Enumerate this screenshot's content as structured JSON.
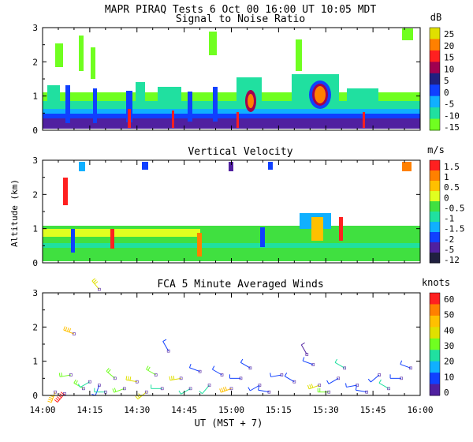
{
  "header": {
    "title": "MAPR PIRAQ Tests  6 Oct 00  16:00 UT  10:05  MDT"
  },
  "xaxis": {
    "label": "UT  (MST + 7)",
    "ticks": [
      "14:00",
      "14:15",
      "14:30",
      "14:45",
      "15:00",
      "15:15",
      "15:30",
      "15:45",
      "16:00"
    ],
    "range_minutes": [
      0,
      120
    ]
  },
  "ylabel_shared": "Altitude (km)",
  "chart_data": [
    {
      "type": "heatmap",
      "title": "Signal to Noise Ratio",
      "unit": "dB",
      "ylim": [
        0,
        3
      ],
      "yticks": [
        "0",
        "1",
        "2",
        "3"
      ],
      "colorbar": {
        "labels": [
          "25",
          "20",
          "15",
          "10",
          "5",
          "0",
          "-5",
          "-10",
          "-15"
        ],
        "colors": [
          "#e0e000",
          "#ff8000",
          "#ff2020",
          "#a00050",
          "#202080",
          "#1040ff",
          "#10b0ff",
          "#20e0a0",
          "#70ff20"
        ]
      },
      "layers": [
        {
          "range": [
            0.0,
            0.35
          ],
          "class": "5-10 dB (purple)"
        },
        {
          "range": [
            0.35,
            0.55
          ],
          "class": "0 dB (blue)"
        },
        {
          "range": [
            0.55,
            0.8
          ],
          "class": "-5 dB (cyan)"
        },
        {
          "range": [
            0.8,
            1.1
          ],
          "class": "-10 to -15 dB (green)"
        }
      ],
      "notable_features": [
        {
          "time_min": 88,
          "alt_km": [
            0.7,
            1.3
          ],
          "peak_db": 20
        },
        {
          "time_min": 67,
          "alt_km": [
            0.8,
            1.2
          ],
          "peak_db": 15
        },
        {
          "time_min": 28,
          "alt_km": [
            0.1,
            0.7
          ],
          "peak_db": 15
        }
      ]
    },
    {
      "type": "heatmap",
      "title": "Vertical Velocity",
      "unit": "m/s",
      "ylim": [
        0,
        3
      ],
      "yticks": [
        "0",
        "1",
        "2",
        "3"
      ],
      "colorbar": {
        "labels": [
          "1.5",
          "1",
          "0.5",
          "0",
          "-0.5",
          "-1",
          "-1.5",
          "-2",
          "-5",
          "-12"
        ],
        "colors": [
          "#ff2020",
          "#ff8000",
          "#ffc000",
          "#e0ff20",
          "#40e040",
          "#20e0a0",
          "#10b0ff",
          "#1040ff",
          "#5020a0",
          "#202040"
        ]
      },
      "dominant_range_ms": [
        -0.5,
        0.5
      ],
      "layer_top_km": 1.0,
      "updraft_feature": {
        "time_min": 88,
        "alt_km": [
          0.8,
          1.4
        ]
      }
    },
    {
      "type": "scatter",
      "title": "FCA 5 Minute Averaged Winds",
      "unit": "knots",
      "ylim": [
        0,
        3
      ],
      "yticks": [
        "0",
        "1",
        "2",
        "3"
      ],
      "colorbar": {
        "labels": [
          "60",
          "50",
          "40",
          "30",
          "20",
          "10",
          "0"
        ],
        "colors": [
          "#ff2020",
          "#ff8000",
          "#ffc000",
          "#e0e000",
          "#70ff20",
          "#20e0a0",
          "#10b0ff",
          "#1040ff",
          "#5020a0"
        ]
      },
      "barbs": [
        {
          "t": 4,
          "z": 0.1,
          "spd": 40,
          "dir": 200
        },
        {
          "t": 7,
          "z": 0.05,
          "spd": 60,
          "dir": 220
        },
        {
          "t": 9,
          "z": 0.6,
          "spd": 20,
          "dir": 260
        },
        {
          "t": 10,
          "z": 1.8,
          "spd": 35,
          "dir": 290
        },
        {
          "t": 18,
          "z": 3.1,
          "spd": 25,
          "dir": 320
        },
        {
          "t": 13,
          "z": 0.2,
          "spd": 15,
          "dir": 300
        },
        {
          "t": 15,
          "z": 0.4,
          "spd": 10,
          "dir": 240
        },
        {
          "t": 18,
          "z": 0.3,
          "spd": 8,
          "dir": 200
        },
        {
          "t": 20,
          "z": 0.1,
          "spd": 12,
          "dir": 270
        },
        {
          "t": 23,
          "z": 0.5,
          "spd": 18,
          "dir": 310
        },
        {
          "t": 26,
          "z": 0.2,
          "spd": 22,
          "dir": 250
        },
        {
          "t": 30,
          "z": 0.4,
          "spd": 30,
          "dir": 280
        },
        {
          "t": 33,
          "z": 0.1,
          "spd": 25,
          "dir": 230
        },
        {
          "t": 36,
          "z": 0.6,
          "spd": 15,
          "dir": 300
        },
        {
          "t": 38,
          "z": 0.2,
          "spd": 10,
          "dir": 270
        },
        {
          "t": 40,
          "z": 1.3,
          "spd": 6,
          "dir": 330
        },
        {
          "t": 44,
          "z": 0.5,
          "spd": 30,
          "dir": 260
        },
        {
          "t": 47,
          "z": 0.2,
          "spd": 12,
          "dir": 240
        },
        {
          "t": 50,
          "z": 0.7,
          "spd": 5,
          "dir": 290
        },
        {
          "t": 53,
          "z": 0.3,
          "spd": 10,
          "dir": 220
        },
        {
          "t": 57,
          "z": 0.6,
          "spd": 8,
          "dir": 300
        },
        {
          "t": 60,
          "z": 0.2,
          "spd": 35,
          "dir": 250
        },
        {
          "t": 63,
          "z": 0.5,
          "spd": 6,
          "dir": 270
        },
        {
          "t": 66,
          "z": 0.8,
          "spd": 9,
          "dir": 300
        },
        {
          "t": 69,
          "z": 0.3,
          "spd": 5,
          "dir": 240
        },
        {
          "t": 72,
          "z": 0.1,
          "spd": 7,
          "dir": 280
        },
        {
          "t": 76,
          "z": 0.6,
          "spd": 5,
          "dir": 260
        },
        {
          "t": 80,
          "z": 0.4,
          "spd": 8,
          "dir": 300
        },
        {
          "t": 84,
          "z": 1.2,
          "spd": 4,
          "dir": 330
        },
        {
          "t": 86,
          "z": 0.9,
          "spd": 6,
          "dir": 290
        },
        {
          "t": 88,
          "z": 0.3,
          "spd": 30,
          "dir": 250
        },
        {
          "t": 91,
          "z": 0.1,
          "spd": 20,
          "dir": 270
        },
        {
          "t": 94,
          "z": 0.5,
          "spd": 6,
          "dir": 240
        },
        {
          "t": 96,
          "z": 0.8,
          "spd": 10,
          "dir": 300
        },
        {
          "t": 100,
          "z": 0.3,
          "spd": 5,
          "dir": 260
        },
        {
          "t": 103,
          "z": 0.1,
          "spd": 7,
          "dir": 280
        },
        {
          "t": 107,
          "z": 0.6,
          "spd": 5,
          "dir": 230
        },
        {
          "t": 110,
          "z": 0.2,
          "spd": 10,
          "dir": 300
        },
        {
          "t": 114,
          "z": 0.5,
          "spd": 6,
          "dir": 270
        },
        {
          "t": 117,
          "z": 0.8,
          "spd": 8,
          "dir": 290
        }
      ]
    }
  ]
}
